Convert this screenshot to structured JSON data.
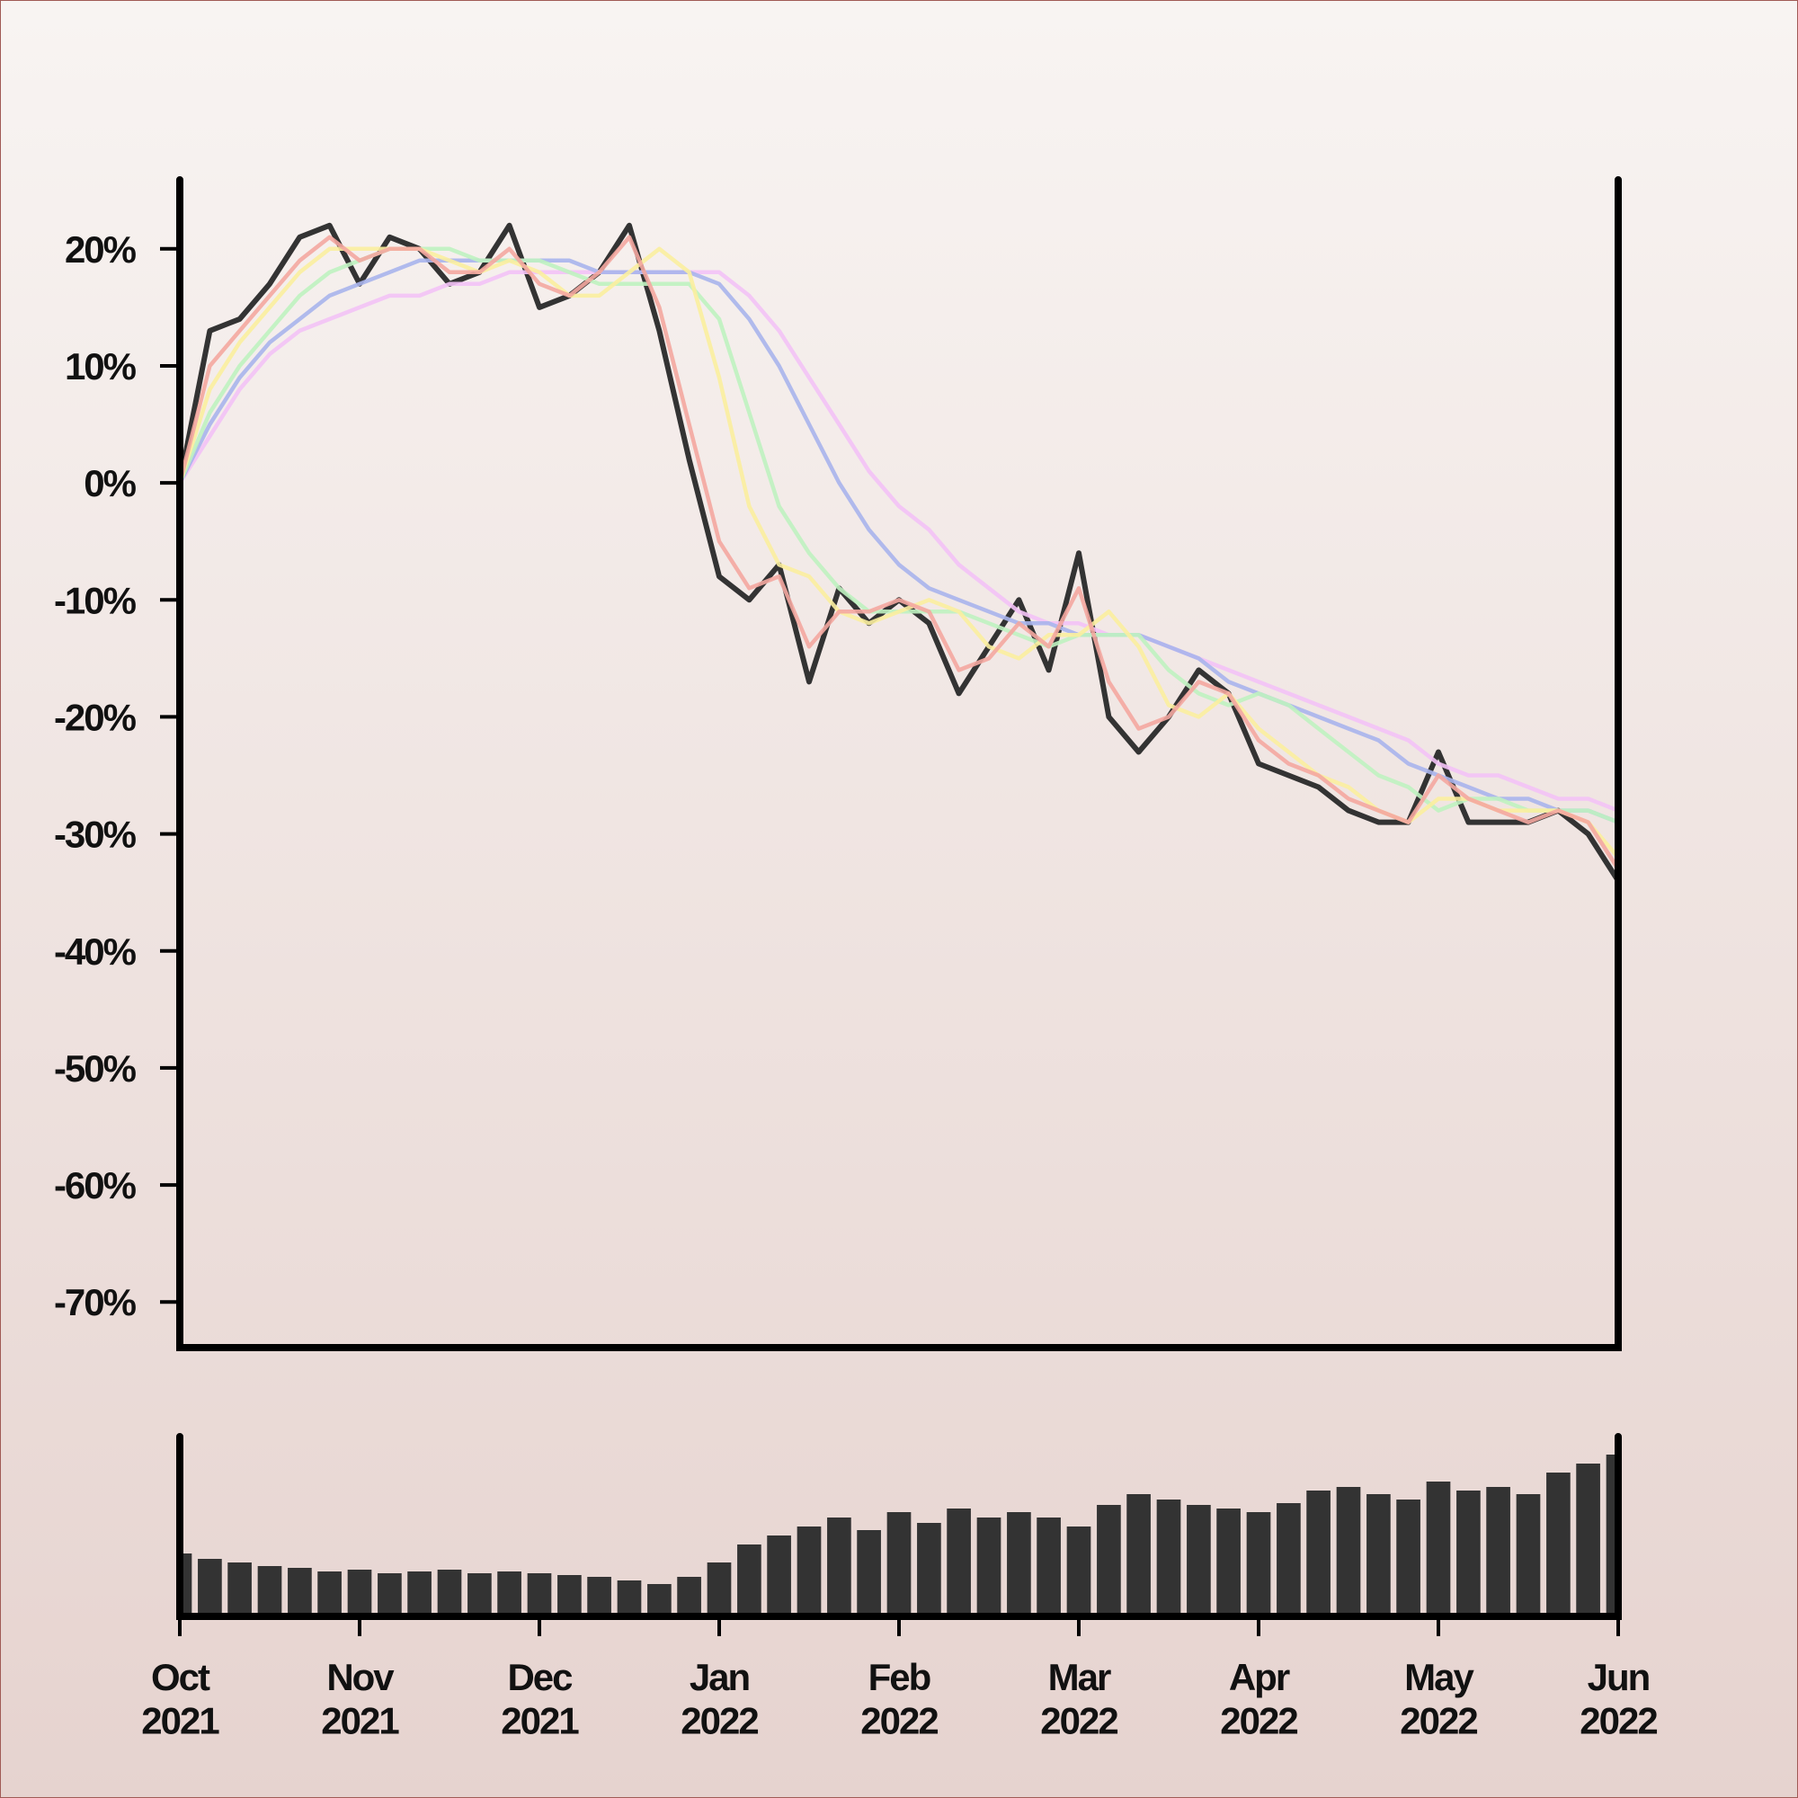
{
  "chart_data": [
    {
      "type": "line",
      "x": [
        0,
        0.167,
        0.333,
        0.5,
        0.667,
        0.833,
        1,
        1.167,
        1.333,
        1.5,
        1.667,
        1.833,
        2,
        2.167,
        2.333,
        2.5,
        2.667,
        2.833,
        3,
        3.167,
        3.333,
        3.5,
        3.667,
        3.833,
        4,
        4.167,
        4.333,
        4.5,
        4.667,
        4.833,
        5,
        5.167,
        5.333,
        5.5,
        5.667,
        5.833,
        6,
        6.167,
        6.333,
        6.5,
        6.667,
        6.833,
        7,
        7.167,
        7.333,
        7.5,
        7.667,
        7.833,
        8
      ],
      "xlim": [
        0,
        8
      ],
      "ylim": [
        -73.9,
        25.9
      ],
      "yticks": [
        {
          "value": 20,
          "label": "20%"
        },
        {
          "value": 10,
          "label": "10%"
        },
        {
          "value": 0,
          "label": "0%"
        },
        {
          "value": -10,
          "label": "-10%"
        },
        {
          "value": -20,
          "label": "-20%"
        },
        {
          "value": -30,
          "label": "-30%"
        },
        {
          "value": -40,
          "label": "-40%"
        },
        {
          "value": -50,
          "label": "-50%"
        },
        {
          "value": -60,
          "label": "-60%"
        },
        {
          "value": -70,
          "label": "-70%"
        }
      ],
      "series": [
        {
          "color": "#333333",
          "values": [
            0,
            13,
            14,
            17,
            21,
            22,
            17,
            21,
            20,
            17,
            18,
            22,
            15,
            16,
            18,
            22,
            13,
            2,
            -8,
            -10,
            -7,
            -17,
            -9,
            -12,
            -10,
            -12,
            -18,
            -14,
            -10,
            -16,
            -6,
            -20,
            -23,
            -20,
            -16,
            -18,
            -24,
            -25,
            -26,
            -28,
            -29,
            -29,
            -23,
            -29,
            -29,
            -29,
            -28,
            -30,
            -34
          ]
        },
        {
          "color": "#f3c2f6",
          "values": [
            0,
            4,
            8,
            11,
            13,
            14,
            15,
            16,
            16,
            17,
            17,
            18,
            18,
            18,
            18,
            18,
            18,
            18,
            18,
            16,
            13,
            9,
            5,
            1,
            -2,
            -4,
            -7,
            -9,
            -11,
            -12,
            -12,
            -13,
            -13,
            -14,
            -15,
            -16,
            -17,
            -18,
            -19,
            -20,
            -21,
            -22,
            -24,
            -25,
            -25,
            -26,
            -27,
            -27,
            -28
          ]
        },
        {
          "color": "#a9b4ec",
          "values": [
            0,
            5,
            9,
            12,
            14,
            16,
            17,
            18,
            19,
            19,
            19,
            19,
            19,
            19,
            18,
            18,
            18,
            18,
            17,
            14,
            10,
            5,
            0,
            -4,
            -7,
            -9,
            -10,
            -11,
            -12,
            -12,
            -13,
            -13,
            -13,
            -14,
            -15,
            -17,
            -18,
            -19,
            -20,
            -21,
            -22,
            -24,
            -25,
            -26,
            -27,
            -27,
            -28,
            -28,
            -29
          ]
        },
        {
          "color": "#bff2c0",
          "values": [
            0,
            6,
            10,
            13,
            16,
            18,
            19,
            20,
            20,
            20,
            19,
            19,
            19,
            18,
            17,
            17,
            17,
            17,
            14,
            6,
            -2,
            -6,
            -9,
            -11,
            -11,
            -11,
            -11,
            -12,
            -13,
            -14,
            -13,
            -13,
            -13,
            -16,
            -18,
            -19,
            -18,
            -19,
            -21,
            -23,
            -25,
            -26,
            -28,
            -27,
            -27,
            -28,
            -28,
            -28,
            -29
          ]
        },
        {
          "color": "#fbee9f",
          "values": [
            0,
            8,
            12,
            15,
            18,
            20,
            20,
            20,
            20,
            19,
            18,
            19,
            18,
            16,
            16,
            18,
            20,
            18,
            9,
            -2,
            -7,
            -8,
            -11,
            -12,
            -11,
            -10,
            -11,
            -14,
            -15,
            -13,
            -13,
            -11,
            -14,
            -19,
            -20,
            -18,
            -21,
            -23,
            -25,
            -26,
            -28,
            -29,
            -27,
            -27,
            -28,
            -28,
            -28,
            -29,
            -32
          ]
        },
        {
          "color": "#f4a7a0",
          "values": [
            0,
            10,
            13,
            16,
            19,
            21,
            19,
            20,
            20,
            18,
            18,
            20,
            17,
            16,
            18,
            21,
            15,
            5,
            -5,
            -9,
            -8,
            -14,
            -11,
            -11,
            -10,
            -11,
            -16,
            -15,
            -12,
            -14,
            -9,
            -17,
            -21,
            -20,
            -17,
            -18,
            -22,
            -24,
            -25,
            -27,
            -28,
            -29,
            -25,
            -27,
            -28,
            -29,
            -28,
            -29,
            -33
          ]
        }
      ]
    },
    {
      "type": "bar",
      "x": [
        0,
        0.167,
        0.333,
        0.5,
        0.667,
        0.833,
        1,
        1.167,
        1.333,
        1.5,
        1.667,
        1.833,
        2,
        2.167,
        2.333,
        2.5,
        2.667,
        2.833,
        3,
        3.167,
        3.333,
        3.5,
        3.667,
        3.833,
        4,
        4.167,
        4.333,
        4.5,
        4.667,
        4.833,
        5,
        5.167,
        5.333,
        5.5,
        5.667,
        5.833,
        6,
        6.167,
        6.333,
        6.5,
        6.667,
        6.833,
        7,
        7.167,
        7.333,
        7.5,
        7.667,
        7.833,
        8
      ],
      "xlim": [
        0,
        8
      ],
      "xticks": [
        {
          "value": 0,
          "label": "Oct 2021"
        },
        {
          "value": 1,
          "label": "Nov 2021"
        },
        {
          "value": 2,
          "label": "Dec 2021"
        },
        {
          "value": 3,
          "label": "Jan 2022"
        },
        {
          "value": 4,
          "label": "Feb 2022"
        },
        {
          "value": 5,
          "label": "Mar 2022"
        },
        {
          "value": 6,
          "label": "Apr 2022"
        },
        {
          "value": 7,
          "label": "May 2022"
        },
        {
          "value": 8,
          "label": "Jun 2022"
        }
      ],
      "ylim": [
        0,
        100
      ],
      "color": "#333333",
      "values": [
        35,
        32,
        30,
        28,
        27,
        25,
        26,
        24,
        25,
        26,
        24,
        25,
        24,
        23,
        22,
        20,
        18,
        22,
        30,
        40,
        45,
        50,
        55,
        48,
        58,
        52,
        60,
        55,
        58,
        55,
        50,
        62,
        68,
        65,
        62,
        60,
        58,
        63,
        70,
        72,
        68,
        65,
        75,
        70,
        72,
        68,
        80,
        85,
        90
      ]
    }
  ]
}
